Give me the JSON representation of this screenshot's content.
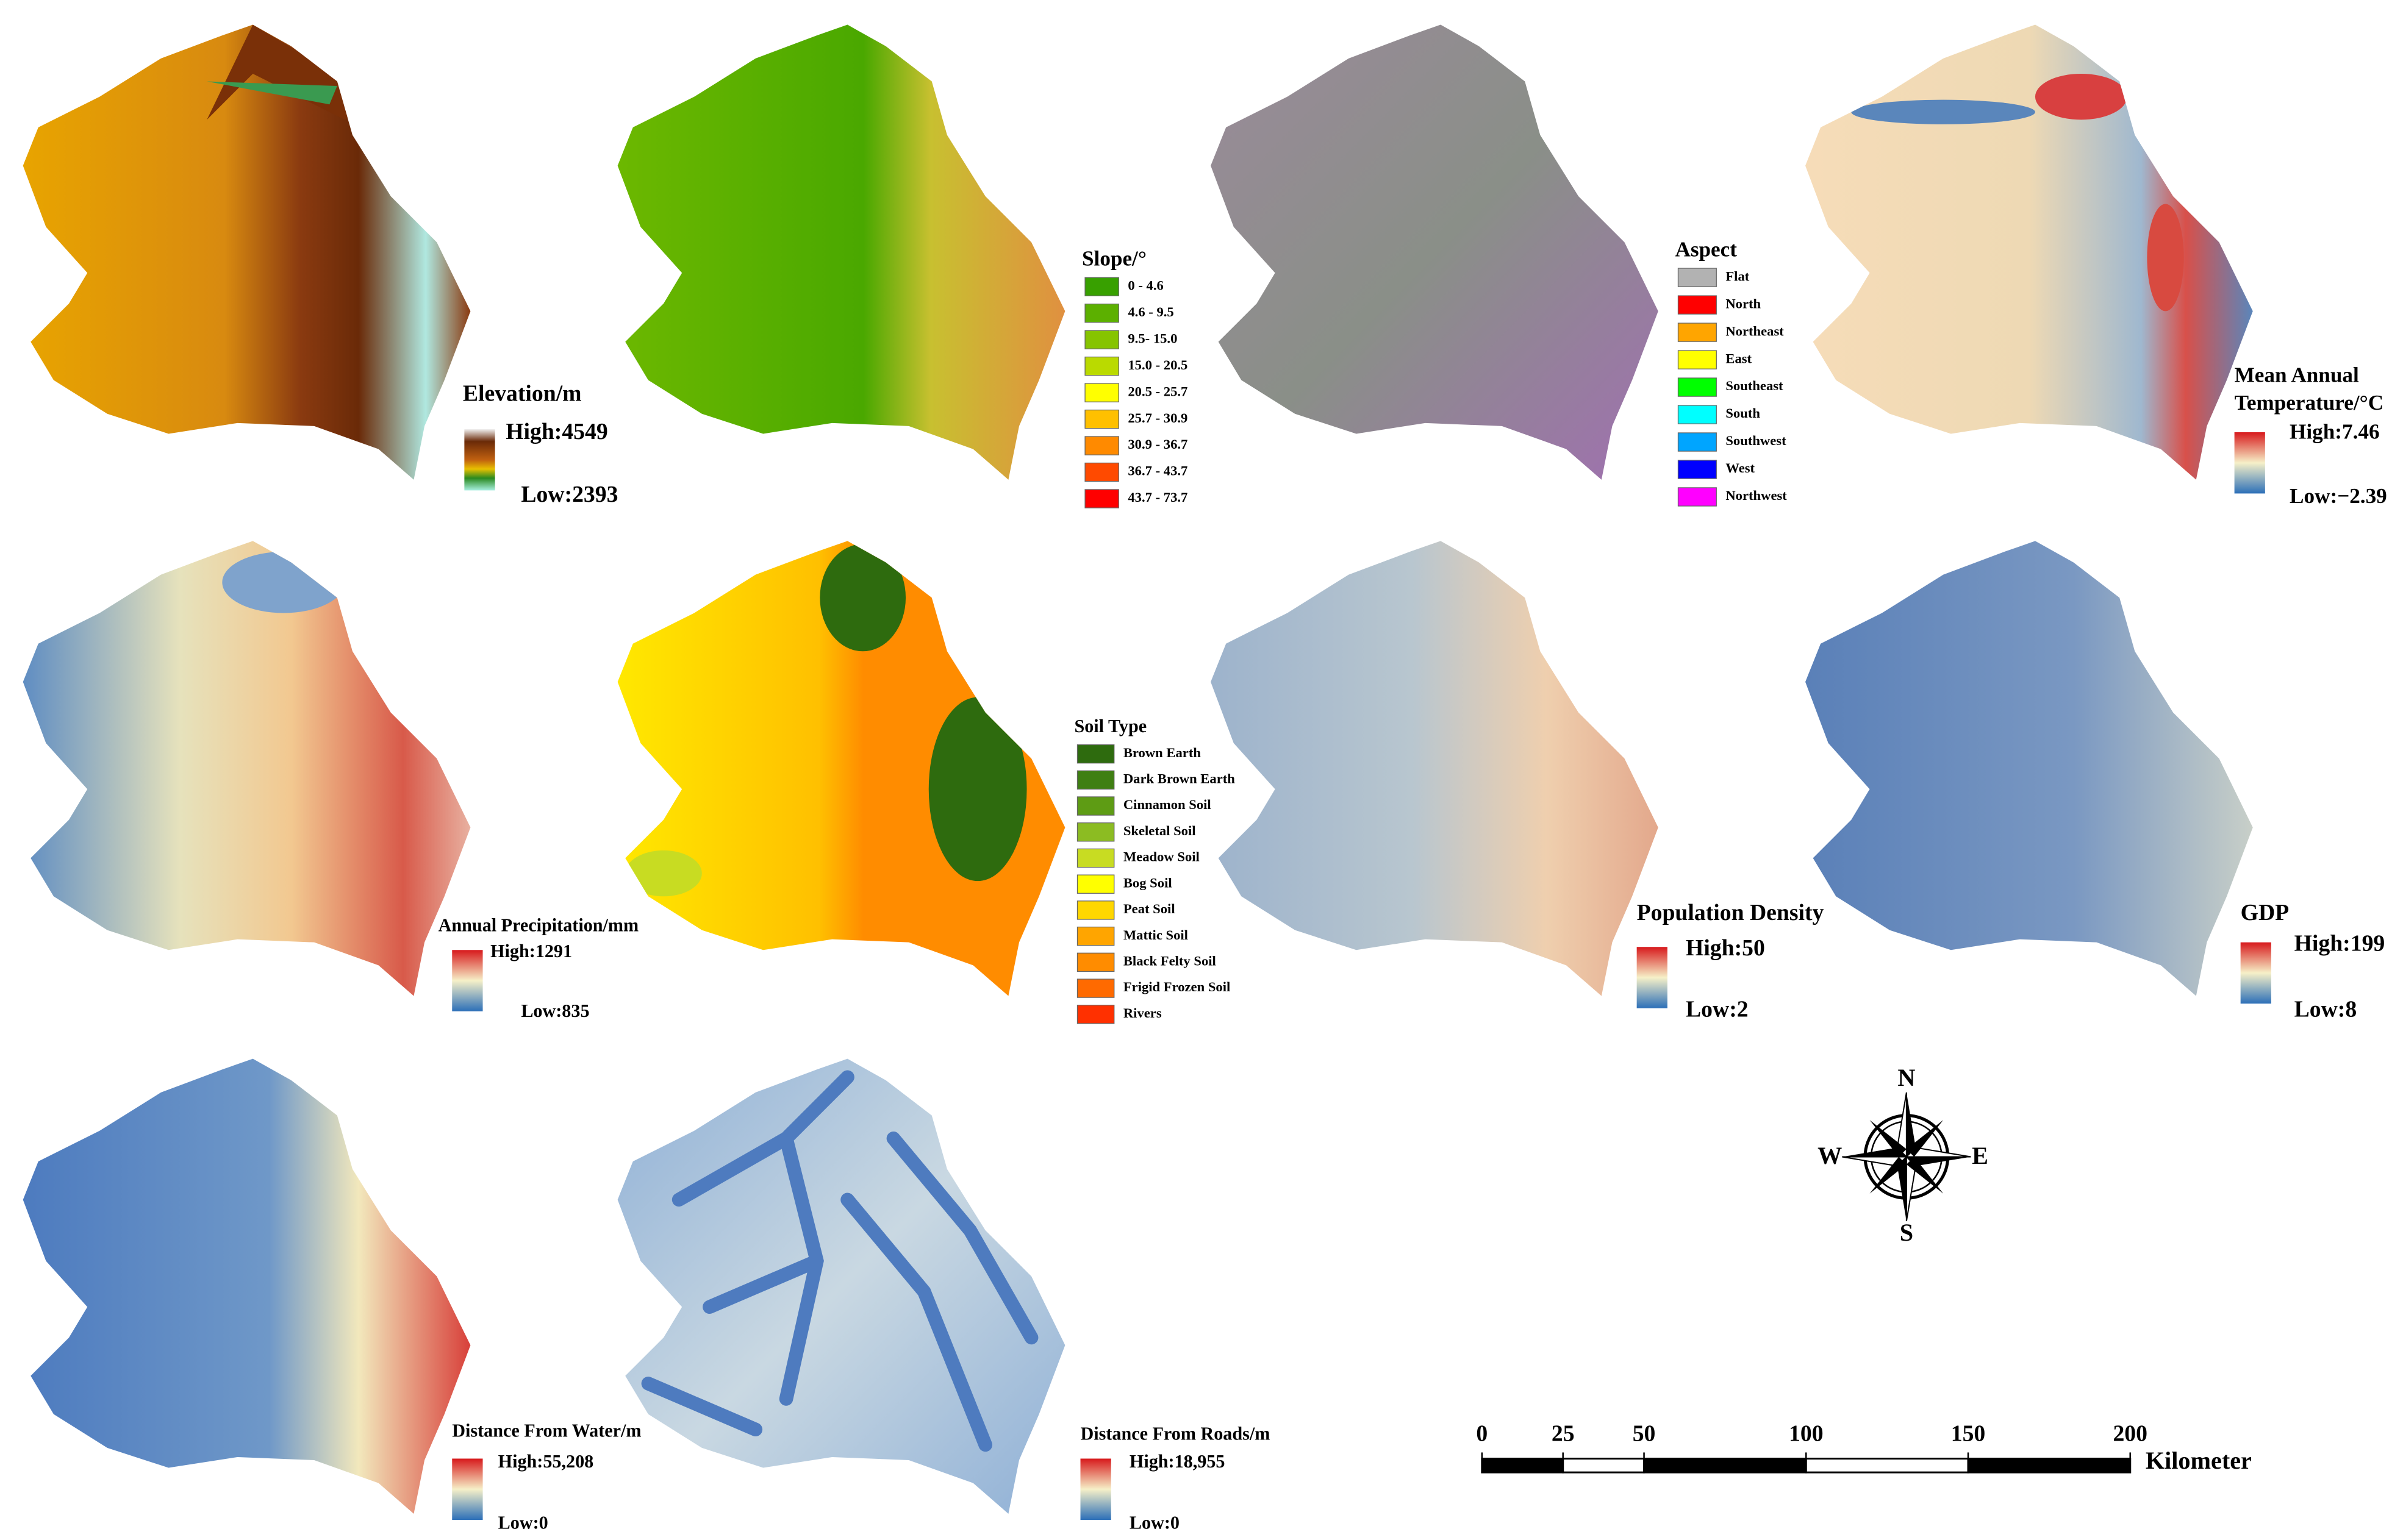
{
  "panels": [
    {
      "title": "Elevation/m",
      "high": "High:4549",
      "low": "Low:2393"
    },
    {
      "title": "Slope/°",
      "items": [
        {
          "label": "0 - 4.6",
          "color": "#38a000"
        },
        {
          "label": "4.6 - 9.5",
          "color": "#5cb000"
        },
        {
          "label": "9.5- 15.0",
          "color": "#86c400"
        },
        {
          "label": "15.0 - 20.5",
          "color": "#bada00"
        },
        {
          "label": "20.5 - 25.7",
          "color": "#ffff00"
        },
        {
          "label": "25.7 - 30.9",
          "color": "#ffc000"
        },
        {
          "label": "30.9 - 36.7",
          "color": "#ff8a00"
        },
        {
          "label": "36.7 - 43.7",
          "color": "#ff4a00"
        },
        {
          "label": "43.7 - 73.7",
          "color": "#ff0000"
        }
      ]
    },
    {
      "title": "Aspect",
      "items": [
        {
          "label": "Flat",
          "color": "#b2b2b2"
        },
        {
          "label": "North",
          "color": "#ff0000"
        },
        {
          "label": "Northeast",
          "color": "#ffa500"
        },
        {
          "label": "East",
          "color": "#ffff00"
        },
        {
          "label": "Southeast",
          "color": "#00ff00"
        },
        {
          "label": "South",
          "color": "#00ffff"
        },
        {
          "label": "Southwest",
          "color": "#00a5ff"
        },
        {
          "label": "West",
          "color": "#0000ff"
        },
        {
          "label": "Northwest",
          "color": "#ff00ff"
        }
      ]
    },
    {
      "title": [
        "Mean Annual",
        "Temperature/°C"
      ],
      "high": "High:7.46",
      "low": "Low:−2.39"
    },
    {
      "title": "Annual Precipitation/mm",
      "high": "High:1291",
      "low": "Low:835"
    },
    {
      "title": "Soil Type",
      "items": [
        {
          "label": "Brown Earth",
          "color": "#2e6b0e"
        },
        {
          "label": "Dark Brown Earth",
          "color": "#3f7f12"
        },
        {
          "label": "Cinnamon Soil",
          "color": "#5e9c14"
        },
        {
          "label": "Skeletal Soil",
          "color": "#8cbc22"
        },
        {
          "label": "Meadow Soil",
          "color": "#c8dc22"
        },
        {
          "label": "Bog Soil",
          "color": "#ffff00"
        },
        {
          "label": "Peat Soil",
          "color": "#ffd700"
        },
        {
          "label": "Mattic Soil",
          "color": "#ffa500"
        },
        {
          "label": "Black Felty Soil",
          "color": "#ff8c00"
        },
        {
          "label": "Frigid Frozen Soil",
          "color": "#ff6a00"
        },
        {
          "label": "Rivers",
          "color": "#ff3000"
        }
      ]
    },
    {
      "title": "Population Density",
      "high": "High:50",
      "low": "Low:2"
    },
    {
      "title": "GDP",
      "high": "High:199",
      "low": "Low:8"
    },
    {
      "title": "Distance From Water/m",
      "high": "High:55,208",
      "low": "Low:0"
    },
    {
      "title": "Distance From Roads/m",
      "high": "High:18,955",
      "low": "Low:0"
    }
  ],
  "compass": {
    "north": "N",
    "south": "S",
    "west": "W",
    "east": "E"
  },
  "scale_bar": {
    "ticks": [
      0,
      25,
      50,
      100,
      150,
      200
    ],
    "unit": "Kilometer"
  }
}
